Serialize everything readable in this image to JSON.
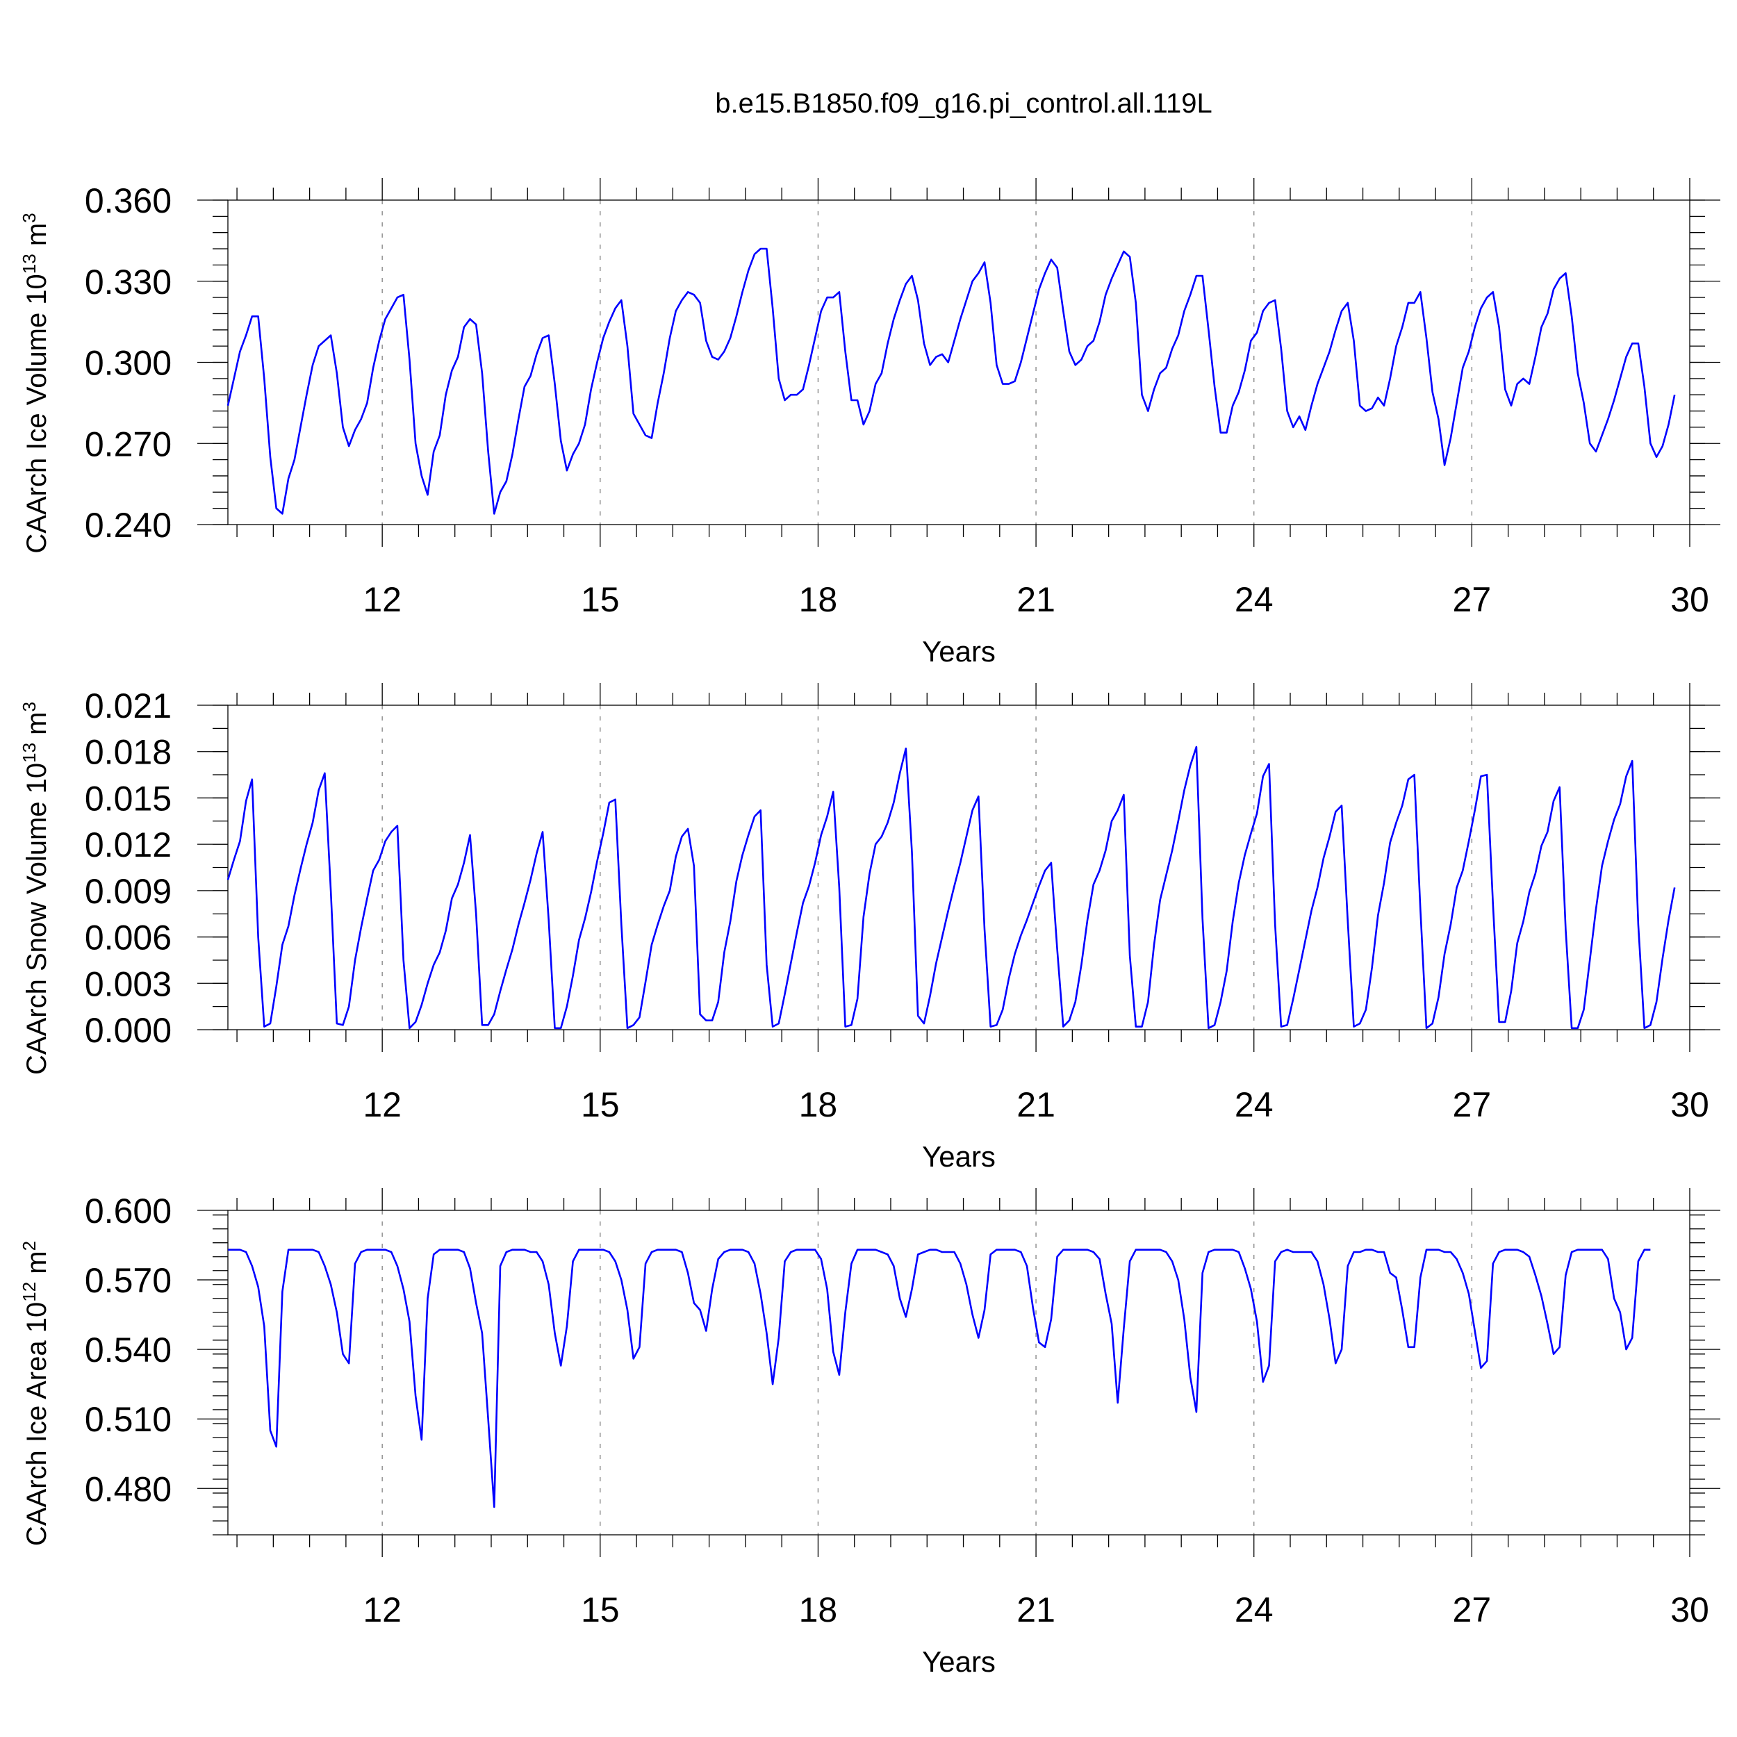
{
  "chart_data": [
    {
      "type": "line",
      "title": "b.e15.B1850.f09_g16.pi_control.all.119L",
      "xlabel": "Years",
      "ylabel": "CAArch Ice Volume 10",
      "ylabel_exp": "13",
      "ylabel_unit": " m",
      "ylabel_unit_exp": "3",
      "xlim": [
        9.875,
        30
      ],
      "ylim": [
        0.24,
        0.36
      ],
      "xticks": [
        12,
        15,
        18,
        21,
        24,
        27,
        30
      ],
      "xtick_labels": [
        "12",
        "15",
        "18",
        "21",
        "24",
        "27",
        "30"
      ],
      "yticks": [
        0.24,
        0.27,
        0.3,
        0.33,
        0.36
      ],
      "ytick_labels": [
        "0.240",
        "0.270",
        "0.300",
        "0.330",
        "0.360"
      ],
      "grid": "dashed vertical at x ticks",
      "series": [
        {
          "name": "CAArch Ice Volume",
          "color": "#0000ff",
          "start_year": 9.875,
          "step": 0.083333,
          "values": [
            0.284,
            0.294,
            0.304,
            0.31,
            0.317,
            0.317,
            0.294,
            0.265,
            0.246,
            0.244,
            0.257,
            0.264,
            0.276,
            0.288,
            0.299,
            0.306,
            0.308,
            0.31,
            0.296,
            0.276,
            0.269,
            0.275,
            0.279,
            0.285,
            0.298,
            0.308,
            0.316,
            0.32,
            0.324,
            0.325,
            0.301,
            0.27,
            0.258,
            0.251,
            0.267,
            0.273,
            0.288,
            0.297,
            0.302,
            0.313,
            0.316,
            0.314,
            0.296,
            0.267,
            0.244,
            0.252,
            0.256,
            0.266,
            0.279,
            0.291,
            0.295,
            0.303,
            0.309,
            0.31,
            0.292,
            0.271,
            0.26,
            0.266,
            0.27,
            0.277,
            0.29,
            0.3,
            0.309,
            0.315,
            0.32,
            0.323,
            0.306,
            0.281,
            0.277,
            0.273,
            0.272,
            0.285,
            0.296,
            0.309,
            0.319,
            0.323,
            0.326,
            0.325,
            0.322,
            0.308,
            0.302,
            0.301,
            0.304,
            0.309,
            0.317,
            0.326,
            0.334,
            0.34,
            0.342,
            0.342,
            0.32,
            0.294,
            0.286,
            0.288,
            0.288,
            0.29,
            0.299,
            0.309,
            0.319,
            0.324,
            0.324,
            0.326,
            0.304,
            0.286,
            0.286,
            0.277,
            0.282,
            0.292,
            0.296,
            0.307,
            0.316,
            0.323,
            0.329,
            0.332,
            0.323,
            0.307,
            0.299,
            0.302,
            0.303,
            0.3,
            0.308,
            0.316,
            0.323,
            0.33,
            0.333,
            0.337,
            0.322,
            0.299,
            0.292,
            0.292,
            0.293,
            0.3,
            0.309,
            0.318,
            0.327,
            0.333,
            0.338,
            0.335,
            0.319,
            0.304,
            0.299,
            0.301,
            0.306,
            0.308,
            0.315,
            0.325,
            0.331,
            0.336,
            0.341,
            0.339,
            0.322,
            0.288,
            0.282,
            0.29,
            0.296,
            0.298,
            0.305,
            0.31,
            0.319,
            0.325,
            0.332,
            0.332,
            0.312,
            0.291,
            0.274,
            0.274,
            0.284,
            0.289,
            0.297,
            0.308,
            0.311,
            0.319,
            0.322,
            0.323,
            0.305,
            0.282,
            0.276,
            0.28,
            0.275,
            0.284,
            0.292,
            0.298,
            0.304,
            0.312,
            0.319,
            0.322,
            0.308,
            0.284,
            0.282,
            0.283,
            0.287,
            0.284,
            0.294,
            0.306,
            0.313,
            0.322,
            0.322,
            0.326,
            0.309,
            0.289,
            0.279,
            0.262,
            0.272,
            0.285,
            0.298,
            0.304,
            0.313,
            0.32,
            0.324,
            0.326,
            0.313,
            0.29,
            0.284,
            0.292,
            0.294,
            0.292,
            0.302,
            0.313,
            0.318,
            0.327,
            0.331,
            0.333,
            0.317,
            0.296,
            0.285,
            0.27,
            0.267,
            0.273,
            0.279,
            0.286,
            0.294,
            0.302,
            0.307,
            0.307,
            0.291,
            0.27,
            0.265,
            0.269,
            0.277,
            0.288
          ]
        }
      ]
    },
    {
      "type": "line",
      "xlabel": "Years",
      "ylabel": "CAArch Snow Volume 10",
      "ylabel_exp": "13",
      "ylabel_unit": " m",
      "ylabel_unit_exp": "3",
      "xlim": [
        9.875,
        30
      ],
      "ylim": [
        0,
        0.021
      ],
      "xticks": [
        12,
        15,
        18,
        21,
        24,
        27,
        30
      ],
      "xtick_labels": [
        "12",
        "15",
        "18",
        "21",
        "24",
        "27",
        "30"
      ],
      "yticks": [
        0,
        0.003,
        0.006,
        0.009,
        0.012,
        0.015,
        0.018,
        0.021
      ],
      "ytick_labels": [
        "0.000",
        "0.003",
        "0.006",
        "0.009",
        "0.012",
        "0.015",
        "0.018",
        "0.021"
      ],
      "grid": "dashed vertical at x ticks",
      "series": [
        {
          "name": "CAArch Snow Volume",
          "color": "#0000ff",
          "start_year": 9.875,
          "step": 0.083333,
          "values": [
            0.0097,
            0.011,
            0.0122,
            0.0148,
            0.0162,
            0.006,
            0.0002,
            0.0004,
            0.0028,
            0.0055,
            0.0067,
            0.0087,
            0.0104,
            0.012,
            0.0134,
            0.0155,
            0.0166,
            0.009,
            0.0004,
            0.0003,
            0.0015,
            0.0045,
            0.0066,
            0.0085,
            0.0103,
            0.011,
            0.0122,
            0.0128,
            0.0132,
            0.0045,
            0.0001,
            0.0005,
            0.0016,
            0.003,
            0.0042,
            0.005,
            0.0064,
            0.0085,
            0.0094,
            0.0108,
            0.0126,
            0.0075,
            0.0003,
            0.0003,
            0.001,
            0.0025,
            0.0039,
            0.0052,
            0.0068,
            0.0082,
            0.0097,
            0.0114,
            0.0128,
            0.0071,
            0.0001,
            0.0001,
            0.0015,
            0.0035,
            0.0058,
            0.0072,
            0.0089,
            0.0109,
            0.0127,
            0.0147,
            0.0149,
            0.0068,
            0.0001,
            0.0003,
            0.0008,
            0.0031,
            0.0055,
            0.0068,
            0.008,
            0.009,
            0.0112,
            0.0125,
            0.013,
            0.0106,
            0.001,
            0.0006,
            0.0006,
            0.0018,
            0.005,
            0.007,
            0.0096,
            0.0113,
            0.0126,
            0.0138,
            0.0142,
            0.0042,
            0.0002,
            0.0004,
            0.0023,
            0.0043,
            0.0063,
            0.0082,
            0.0093,
            0.0108,
            0.0126,
            0.0138,
            0.0154,
            0.0092,
            0.0002,
            0.0003,
            0.002,
            0.0073,
            0.0101,
            0.012,
            0.0125,
            0.0134,
            0.0147,
            0.0166,
            0.0182,
            0.0115,
            0.0009,
            0.0004,
            0.0022,
            0.0043,
            0.006,
            0.0077,
            0.0093,
            0.0108,
            0.0125,
            0.0142,
            0.0151,
            0.0065,
            0.0002,
            0.0003,
            0.0013,
            0.0033,
            0.0049,
            0.0061,
            0.0071,
            0.0082,
            0.0093,
            0.0103,
            0.0108,
            0.0052,
            0.0002,
            0.0006,
            0.0018,
            0.0042,
            0.0071,
            0.0094,
            0.0103,
            0.0116,
            0.0135,
            0.0142,
            0.0152,
            0.0048,
            0.0002,
            0.0002,
            0.0018,
            0.0055,
            0.0084,
            0.01,
            0.0116,
            0.0135,
            0.0155,
            0.0171,
            0.0183,
            0.0072,
            0.0001,
            0.0003,
            0.0018,
            0.0038,
            0.007,
            0.0095,
            0.0113,
            0.0127,
            0.014,
            0.0164,
            0.0172,
            0.0068,
            0.0002,
            0.0003,
            0.002,
            0.0039,
            0.0058,
            0.0077,
            0.0092,
            0.0111,
            0.0125,
            0.0141,
            0.0145,
            0.007,
            0.0002,
            0.0004,
            0.0013,
            0.004,
            0.0074,
            0.0095,
            0.0121,
            0.0134,
            0.0145,
            0.0162,
            0.0165,
            0.0078,
            0.0001,
            0.0004,
            0.0021,
            0.0049,
            0.0068,
            0.0092,
            0.0103,
            0.0122,
            0.0142,
            0.0164,
            0.0165,
            0.0081,
            0.0005,
            0.0005,
            0.0025,
            0.0056,
            0.007,
            0.0089,
            0.0101,
            0.0119,
            0.0128,
            0.0148,
            0.0157,
            0.0065,
            0.0001,
            0.0001,
            0.0013,
            0.0045,
            0.0078,
            0.0106,
            0.0122,
            0.0136,
            0.0146,
            0.0164,
            0.0174,
            0.0068,
            0.0001,
            0.0003,
            0.0018,
            0.0046,
            0.0071,
            0.0092
          ]
        }
      ]
    },
    {
      "type": "line",
      "xlabel": "Years",
      "ylabel": "CAArch Ice Area 10",
      "ylabel_exp": "12",
      "ylabel_unit": " m",
      "ylabel_unit_exp": "2",
      "xlim": [
        9.875,
        30
      ],
      "ylim": [
        0.46,
        0.6
      ],
      "xticks": [
        12,
        15,
        18,
        21,
        24,
        27,
        30
      ],
      "xtick_labels": [
        "12",
        "15",
        "18",
        "21",
        "24",
        "27",
        "30"
      ],
      "yticks": [
        0.48,
        0.51,
        0.54,
        0.57,
        0.6
      ],
      "ytick_labels": [
        "0.480",
        "0.510",
        "0.540",
        "0.570",
        "0.600"
      ],
      "grid": "dashed vertical at x ticks",
      "series": [
        {
          "name": "CAArch Ice Area",
          "color": "#0000ff",
          "start_year": 9.875,
          "step": 0.083333,
          "values": [
            0.583,
            0.583,
            0.583,
            0.582,
            0.576,
            0.567,
            0.55,
            0.505,
            0.498,
            0.565,
            0.583,
            0.583,
            0.583,
            0.583,
            0.583,
            0.582,
            0.576,
            0.568,
            0.556,
            0.538,
            0.534,
            0.577,
            0.582,
            0.583,
            0.583,
            0.583,
            0.583,
            0.582,
            0.576,
            0.566,
            0.552,
            0.52,
            0.501,
            0.562,
            0.581,
            0.583,
            0.583,
            0.583,
            0.583,
            0.582,
            0.575,
            0.56,
            0.547,
            0.51,
            0.472,
            0.576,
            0.582,
            0.583,
            0.583,
            0.583,
            0.582,
            0.582,
            0.578,
            0.568,
            0.547,
            0.533,
            0.55,
            0.578,
            0.583,
            0.583,
            0.583,
            0.583,
            0.583,
            0.582,
            0.578,
            0.57,
            0.557,
            0.536,
            0.541,
            0.577,
            0.582,
            0.583,
            0.583,
            0.583,
            0.583,
            0.582,
            0.573,
            0.56,
            0.557,
            0.548,
            0.566,
            0.579,
            0.582,
            0.583,
            0.583,
            0.583,
            0.582,
            0.577,
            0.564,
            0.547,
            0.525,
            0.545,
            0.578,
            0.582,
            0.583,
            0.583,
            0.583,
            0.583,
            0.579,
            0.566,
            0.539,
            0.529,
            0.556,
            0.577,
            0.583,
            0.583,
            0.583,
            0.583,
            0.582,
            0.581,
            0.576,
            0.562,
            0.554,
            0.566,
            0.581,
            0.582,
            0.583,
            0.583,
            0.582,
            0.582,
            0.582,
            0.577,
            0.568,
            0.555,
            0.545,
            0.557,
            0.581,
            0.583,
            0.583,
            0.583,
            0.583,
            0.582,
            0.576,
            0.558,
            0.543,
            0.541,
            0.553,
            0.58,
            0.583,
            0.583,
            0.583,
            0.583,
            0.583,
            0.582,
            0.579,
            0.564,
            0.551,
            0.517,
            0.549,
            0.578,
            0.583,
            0.583,
            0.583,
            0.583,
            0.583,
            0.582,
            0.578,
            0.57,
            0.553,
            0.528,
            0.513,
            0.573,
            0.582,
            0.583,
            0.583,
            0.583,
            0.583,
            0.582,
            0.575,
            0.566,
            0.552,
            0.526,
            0.533,
            0.578,
            0.582,
            0.583,
            0.582,
            0.582,
            0.582,
            0.582,
            0.578,
            0.568,
            0.553,
            0.534,
            0.54,
            0.576,
            0.582,
            0.582,
            0.583,
            0.583,
            0.582,
            0.582,
            0.573,
            0.571,
            0.557,
            0.541,
            0.541,
            0.571,
            0.583,
            0.583,
            0.583,
            0.582,
            0.582,
            0.579,
            0.573,
            0.564,
            0.548,
            0.532,
            0.535,
            0.577,
            0.582,
            0.583,
            0.583,
            0.583,
            0.582,
            0.58,
            0.572,
            0.563,
            0.551,
            0.538,
            0.541,
            0.572,
            0.582,
            0.583,
            0.583,
            0.583,
            0.583,
            0.583,
            0.579,
            0.562,
            0.556,
            0.54,
            0.545,
            0.578,
            0.583,
            0.583
          ]
        }
      ]
    }
  ]
}
